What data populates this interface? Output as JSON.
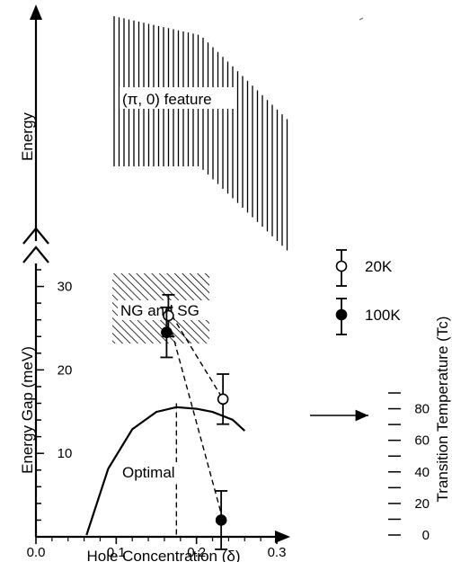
{
  "chart_data": {
    "type": "scatter",
    "upper_panel": {
      "ylabel": "Energy",
      "hatched_region_label": "(π, 0) feature"
    },
    "lower_panel": {
      "xlabel": "Hole Concentration (δ)",
      "ylabel_left": "Energy Gap (meV)",
      "ylabel_right": "Transition Temperature (Tc)",
      "xlim": [
        0.0,
        0.3
      ],
      "ylim_left": [
        0,
        32
      ],
      "ylim_right": [
        0,
        90
      ],
      "x_ticks": [
        "0.0",
        "0.1",
        "0.2",
        "0.3"
      ],
      "y_ticks_left": [
        "10",
        "20",
        "30"
      ],
      "y_ticks_right": [
        "0",
        "20",
        "40",
        "60",
        "80"
      ],
      "hatched_region_label": "NG and SG",
      "annotation": "Optimal",
      "optimal_doping": 0.175,
      "series": [
        {
          "name": "20K",
          "marker": "open-circle",
          "x": [
            0.165,
            0.233
          ],
          "y": [
            26.5,
            16.5
          ],
          "yerr": [
            2.5,
            3.0
          ]
        },
        {
          "name": "100K",
          "marker": "filled-circle",
          "x": [
            0.165,
            0.233
          ],
          "y": [
            24.5,
            2.0
          ],
          "yerr": [
            3.0,
            3.5
          ]
        }
      ],
      "tc_dome": {
        "x": [
          0.063,
          0.09,
          0.12,
          0.15,
          0.175,
          0.2,
          0.22,
          0.245,
          0.26
        ],
        "tc": [
          0,
          42,
          67,
          78,
          81,
          80,
          78,
          73,
          66
        ]
      }
    }
  }
}
